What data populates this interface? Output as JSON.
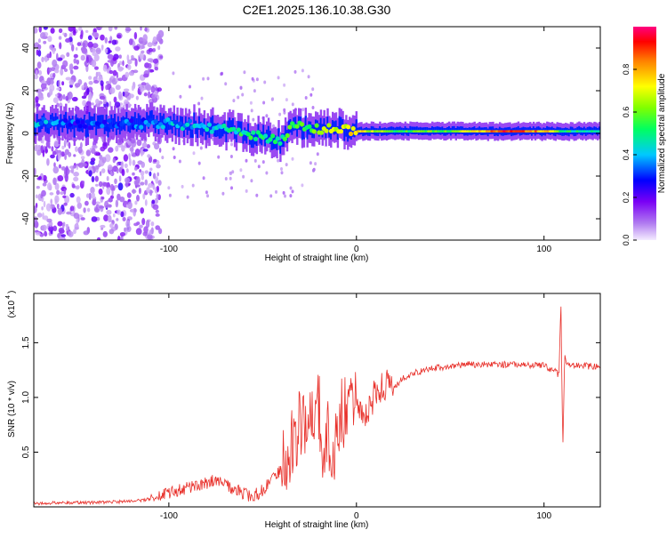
{
  "figure_title": "C2E1.2025.136.10.38.G30",
  "colorbar": {
    "label": "Normalized spectral amplitude",
    "ticks": [
      "0.0",
      "0.2",
      "0.4",
      "0.6",
      "0.8"
    ],
    "tick_values": [
      0.0,
      0.2,
      0.4,
      0.6,
      0.8
    ],
    "range": [
      0,
      1
    ],
    "colormap": "rainbow (magenta-purple-blue-cyan-green-yellow-orange-red-pink)"
  },
  "chart_data": [
    {
      "type": "heatmap",
      "title": "",
      "xlabel": "Height of straight line (km)",
      "ylabel": "Frequency (Hz)",
      "xlim": [
        -172,
        130
      ],
      "ylim": [
        -50,
        50
      ],
      "xticks": [
        -100,
        0,
        100
      ],
      "yticks": [
        -40,
        -20,
        0,
        20,
        40
      ],
      "grid": false,
      "ridge": {
        "description": "main spectral ridge frequency vs height",
        "x": [
          -172,
          -150,
          -130,
          -110,
          -90,
          -70,
          -60,
          -50,
          -40,
          -35,
          -30,
          -20,
          -10,
          0,
          20,
          50,
          80,
          100,
          110,
          130
        ],
        "freq_hz": [
          5,
          4,
          4,
          5,
          4,
          2,
          0,
          -2,
          -4,
          3,
          3,
          2,
          2,
          1,
          1,
          1,
          1,
          1,
          1,
          1
        ],
        "amplitude": [
          0.4,
          0.3,
          0.3,
          0.35,
          0.4,
          0.45,
          0.5,
          0.5,
          0.5,
          0.55,
          0.55,
          0.6,
          0.7,
          0.75,
          0.55,
          0.6,
          0.9,
          0.8,
          0.5,
          0.5
        ]
      }
    },
    {
      "type": "line",
      "title": "",
      "xlabel": "Height of straight line (km)",
      "ylabel": "SNR (10 * v/v)",
      "y_scale_label": "(x10",
      "y_scale_exponent": "4",
      "xlim": [
        -172,
        130
      ],
      "ylim": [
        0,
        1.95
      ],
      "xticks": [
        -100,
        0,
        100
      ],
      "yticks": [
        0.5,
        1.0,
        1.5
      ],
      "grid": false,
      "color": "#e8302a",
      "series": [
        {
          "x": [
            -172,
            -160,
            -140,
            -120,
            -110,
            -100,
            -90,
            -80,
            -75,
            -70,
            -60,
            -55,
            -50,
            -45,
            -40,
            -35,
            -30,
            -28,
            -25,
            -22,
            -20,
            -18,
            -15,
            -12,
            -10,
            -5,
            0,
            5,
            10,
            15,
            20,
            25,
            30,
            40,
            50,
            60,
            70,
            80,
            90,
            100,
            105,
            108,
            109,
            110,
            111,
            112,
            115,
            120,
            130
          ],
          "values": [
            0.03,
            0.04,
            0.04,
            0.05,
            0.07,
            0.12,
            0.18,
            0.22,
            0.26,
            0.2,
            0.12,
            0.1,
            0.15,
            0.25,
            0.35,
            0.5,
            0.8,
            0.7,
            0.95,
            0.75,
            0.9,
            0.5,
            0.7,
            0.55,
            0.8,
            0.9,
            1.0,
            0.8,
            1.05,
            1.12,
            1.08,
            1.18,
            1.22,
            1.26,
            1.29,
            1.3,
            1.3,
            1.3,
            1.3,
            1.29,
            1.25,
            1.2,
            1.9,
            0.5,
            1.4,
            1.3,
            1.29,
            1.29,
            1.28
          ]
        }
      ]
    }
  ]
}
